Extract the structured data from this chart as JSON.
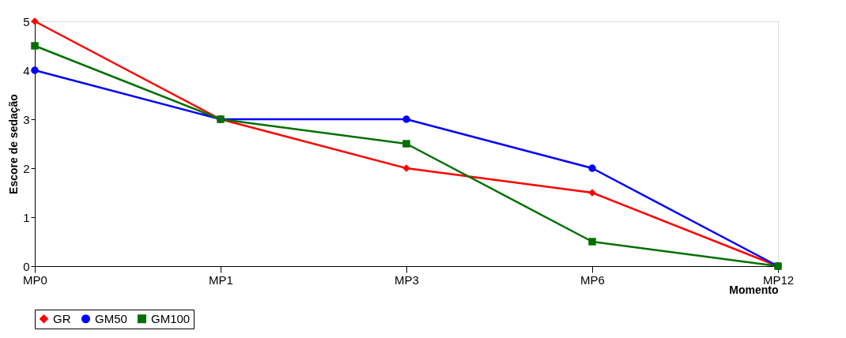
{
  "chart_data": {
    "type": "line",
    "xlabel": "Momento",
    "ylabel": "Escore de sedação",
    "categories": [
      "MP0",
      "MP1",
      "MP3",
      "MP6",
      "MP12"
    ],
    "series": [
      {
        "name": "GR",
        "color": "#ff0000",
        "marker": "diamond",
        "values": [
          5,
          3,
          2,
          1.5,
          0
        ]
      },
      {
        "name": "GM50",
        "color": "#0000ff",
        "marker": "circle",
        "values": [
          4,
          3,
          3,
          2,
          0
        ]
      },
      {
        "name": "GM100",
        "color": "#007000",
        "marker": "square",
        "values": [
          4.5,
          3,
          2.5,
          0.5,
          0
        ]
      }
    ],
    "ylim": [
      0,
      5
    ],
    "yticks": [
      0,
      1,
      2,
      3,
      4,
      5
    ],
    "grid": false,
    "legend": "bottom",
    "line_style": "solid"
  }
}
